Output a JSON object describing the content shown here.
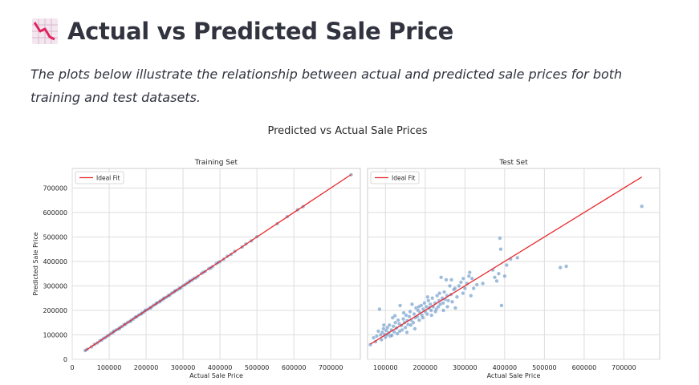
{
  "header": {
    "icon": "chart-decreasing-icon",
    "title": "Actual vs Predicted Sale Price",
    "description": "The plots below illustrate the relationship between actual and predicted sale prices for both training and test datasets."
  },
  "colors": {
    "points": "#5b8ec3",
    "fit_line": "#e8292c",
    "grid": "#dddddd",
    "text": "#31333f"
  },
  "chart_data": {
    "suptitle": "Predicted vs Actual Sale Prices",
    "charts": [
      {
        "type": "scatter",
        "title": "Training Set",
        "xlabel": "Actual Sale Price",
        "ylabel": "Predicted Sale Price",
        "xlim": [
          0,
          780000
        ],
        "ylim": [
          0,
          780000
        ],
        "xticks": [
          {
            "v": 0,
            "label": "0"
          },
          {
            "v": 100000,
            "label": "100000"
          },
          {
            "v": 200000,
            "label": "200000"
          },
          {
            "v": 300000,
            "label": "300000"
          },
          {
            "v": 400000,
            "label": "400000"
          },
          {
            "v": 500000,
            "label": "500000"
          },
          {
            "v": 600000,
            "label": "600000"
          },
          {
            "v": 700000,
            "label": "700000"
          }
        ],
        "yticks": [
          {
            "v": 0,
            "label": "0"
          },
          {
            "v": 100000,
            "label": "100000"
          },
          {
            "v": 200000,
            "label": "200000"
          },
          {
            "v": 300000,
            "label": "300000"
          },
          {
            "v": 400000,
            "label": "400000"
          },
          {
            "v": 500000,
            "label": "500000"
          },
          {
            "v": 600000,
            "label": "600000"
          },
          {
            "v": 700000,
            "label": "700000"
          }
        ],
        "grid": true,
        "legend": {
          "placement": "top-left",
          "entries": [
            "Ideal Fit"
          ]
        },
        "ideal_fit": [
          [
            34900,
            34900
          ],
          [
            755000,
            755000
          ]
        ],
        "points": [
          [
            34900,
            36000
          ],
          [
            40000,
            41000
          ],
          [
            52000,
            51000
          ],
          [
            60000,
            61000
          ],
          [
            68000,
            67000
          ],
          [
            75000,
            76000
          ],
          [
            80000,
            79000
          ],
          [
            85000,
            86000
          ],
          [
            90000,
            89000
          ],
          [
            95000,
            96000
          ],
          [
            100000,
            99000
          ],
          [
            105000,
            106000
          ],
          [
            110000,
            109000
          ],
          [
            115000,
            116000
          ],
          [
            120000,
            121000
          ],
          [
            125000,
            124000
          ],
          [
            130000,
            131000
          ],
          [
            135000,
            134000
          ],
          [
            140000,
            141000
          ],
          [
            145000,
            144000
          ],
          [
            150000,
            151000
          ],
          [
            155000,
            154000
          ],
          [
            160000,
            161000
          ],
          [
            165000,
            164000
          ],
          [
            170000,
            171000
          ],
          [
            175000,
            174000
          ],
          [
            180000,
            181000
          ],
          [
            185000,
            184000
          ],
          [
            190000,
            191000
          ],
          [
            195000,
            194000
          ],
          [
            200000,
            201000
          ],
          [
            205000,
            204000
          ],
          [
            210000,
            211000
          ],
          [
            215000,
            214000
          ],
          [
            220000,
            221000
          ],
          [
            225000,
            224000
          ],
          [
            230000,
            231000
          ],
          [
            235000,
            234000
          ],
          [
            240000,
            241000
          ],
          [
            245000,
            244000
          ],
          [
            250000,
            251000
          ],
          [
            255000,
            254000
          ],
          [
            260000,
            261000
          ],
          [
            265000,
            264000
          ],
          [
            270000,
            271000
          ],
          [
            275000,
            274000
          ],
          [
            280000,
            281000
          ],
          [
            285000,
            284000
          ],
          [
            290000,
            291000
          ],
          [
            295000,
            294000
          ],
          [
            300000,
            301000
          ],
          [
            305000,
            304000
          ],
          [
            310000,
            311000
          ],
          [
            315000,
            314000
          ],
          [
            320000,
            321000
          ],
          [
            325000,
            324000
          ],
          [
            330000,
            331000
          ],
          [
            340000,
            339000
          ],
          [
            350000,
            351000
          ],
          [
            360000,
            359000
          ],
          [
            370000,
            371000
          ],
          [
            380000,
            379000
          ],
          [
            390000,
            391000
          ],
          [
            400000,
            399000
          ],
          [
            420000,
            421000
          ],
          [
            430000,
            429000
          ],
          [
            440000,
            441000
          ],
          [
            460000,
            459000
          ],
          [
            470000,
            471000
          ],
          [
            485000,
            484000
          ],
          [
            500000,
            501000
          ],
          [
            555000,
            554000
          ],
          [
            582000,
            583000
          ],
          [
            610000,
            611000
          ],
          [
            625000,
            624000
          ],
          [
            755000,
            754000
          ],
          [
            112000,
            114000
          ],
          [
            128000,
            126000
          ],
          [
            142000,
            143000
          ],
          [
            158000,
            156000
          ],
          [
            172000,
            173000
          ],
          [
            188000,
            187000
          ],
          [
            198000,
            200000
          ],
          [
            212000,
            210000
          ],
          [
            228000,
            229000
          ],
          [
            238000,
            237000
          ],
          [
            248000,
            249000
          ],
          [
            262000,
            260000
          ],
          [
            278000,
            279000
          ],
          [
            292000,
            290000
          ],
          [
            318000,
            319000
          ],
          [
            335000,
            333000
          ],
          [
            355000,
            356000
          ],
          [
            375000,
            373000
          ],
          [
            395000,
            396000
          ],
          [
            410000,
            409000
          ]
        ]
      },
      {
        "type": "scatter",
        "title": "Test Set",
        "xlabel": "Actual Sale Price",
        "ylabel": "",
        "xlim": [
          55000,
          790000
        ],
        "ylim": [
          0,
          780000
        ],
        "xticks": [
          {
            "v": 100000,
            "label": "100000"
          },
          {
            "v": 200000,
            "label": "200000"
          },
          {
            "v": 300000,
            "label": "300000"
          },
          {
            "v": 400000,
            "label": "400000"
          },
          {
            "v": 500000,
            "label": "500000"
          },
          {
            "v": 600000,
            "label": "600000"
          },
          {
            "v": 700000,
            "label": "700000"
          }
        ],
        "grid": true,
        "legend": {
          "placement": "top-left",
          "entries": [
            "Ideal Fit"
          ]
        },
        "ideal_fit": [
          [
            62000,
            62000
          ],
          [
            745000,
            745000
          ]
        ],
        "points": [
          [
            62000,
            60000
          ],
          [
            70000,
            88000
          ],
          [
            75000,
            72000
          ],
          [
            78000,
            95000
          ],
          [
            82000,
            115000
          ],
          [
            85000,
            205000
          ],
          [
            88000,
            100000
          ],
          [
            90000,
            80000
          ],
          [
            92000,
            110000
          ],
          [
            95000,
            125000
          ],
          [
            98000,
            102000
          ],
          [
            100000,
            90000
          ],
          [
            102000,
            118000
          ],
          [
            105000,
            130000
          ],
          [
            108000,
            108000
          ],
          [
            110000,
            140000
          ],
          [
            112000,
            95000
          ],
          [
            115000,
            120000
          ],
          [
            118000,
            170000
          ],
          [
            120000,
            135000
          ],
          [
            122000,
            112000
          ],
          [
            125000,
            150000
          ],
          [
            128000,
            128000
          ],
          [
            130000,
            105000
          ],
          [
            132000,
            160000
          ],
          [
            135000,
            145000
          ],
          [
            137000,
            220000
          ],
          [
            140000,
            138000
          ],
          [
            142000,
            120000
          ],
          [
            145000,
            165000
          ],
          [
            148000,
            150000
          ],
          [
            150000,
            130000
          ],
          [
            152000,
            180000
          ],
          [
            155000,
            158000
          ],
          [
            157000,
            142000
          ],
          [
            160000,
            175000
          ],
          [
            162000,
            195000
          ],
          [
            165000,
            160000
          ],
          [
            167000,
            225000
          ],
          [
            170000,
            150000
          ],
          [
            172000,
            185000
          ],
          [
            175000,
            170000
          ],
          [
            177000,
            210000
          ],
          [
            180000,
            175000
          ],
          [
            182000,
            200000
          ],
          [
            185000,
            160000
          ],
          [
            187000,
            190000
          ],
          [
            190000,
            220000
          ],
          [
            192000,
            180000
          ],
          [
            195000,
            205000
          ],
          [
            198000,
            230000
          ],
          [
            200000,
            195000
          ],
          [
            203000,
            215000
          ],
          [
            205000,
            185000
          ],
          [
            208000,
            240000
          ],
          [
            210000,
            210000
          ],
          [
            213000,
            225000
          ],
          [
            215000,
            200000
          ],
          [
            218000,
            250000
          ],
          [
            220000,
            215000
          ],
          [
            225000,
            230000
          ],
          [
            228000,
            205000
          ],
          [
            230000,
            260000
          ],
          [
            233000,
            215000
          ],
          [
            235000,
            240000
          ],
          [
            238000,
            225000
          ],
          [
            240000,
            335000
          ],
          [
            243000,
            250000
          ],
          [
            245000,
            230000
          ],
          [
            248000,
            275000
          ],
          [
            250000,
            245000
          ],
          [
            253000,
            325000
          ],
          [
            255000,
            260000
          ],
          [
            258000,
            240000
          ],
          [
            262000,
            300000
          ],
          [
            265000,
            265000
          ],
          [
            268000,
            235000
          ],
          [
            272000,
            285000
          ],
          [
            275000,
            290000
          ],
          [
            280000,
            255000
          ],
          [
            285000,
            300000
          ],
          [
            290000,
            315000
          ],
          [
            295000,
            270000
          ],
          [
            300000,
            290000
          ],
          [
            305000,
            310000
          ],
          [
            310000,
            340000
          ],
          [
            312000,
            355000
          ],
          [
            315000,
            260000
          ],
          [
            318000,
            330000
          ],
          [
            322000,
            290000
          ],
          [
            330000,
            305000
          ],
          [
            345000,
            310000
          ],
          [
            370000,
            365000
          ],
          [
            375000,
            335000
          ],
          [
            380000,
            320000
          ],
          [
            385000,
            350000
          ],
          [
            388000,
            495000
          ],
          [
            390000,
            450000
          ],
          [
            392000,
            220000
          ],
          [
            400000,
            340000
          ],
          [
            405000,
            385000
          ],
          [
            415000,
            410000
          ],
          [
            432000,
            415000
          ],
          [
            540000,
            375000
          ],
          [
            555000,
            380000
          ],
          [
            745000,
            625000
          ],
          [
            96000,
            140000
          ],
          [
            104000,
            100000
          ],
          [
            116000,
            98000
          ],
          [
            124000,
            178000
          ],
          [
            136000,
            115000
          ],
          [
            146000,
            190000
          ],
          [
            154000,
            110000
          ],
          [
            164000,
            140000
          ],
          [
            174000,
            125000
          ],
          [
            184000,
            215000
          ],
          [
            194000,
            170000
          ],
          [
            206000,
            255000
          ],
          [
            216000,
            180000
          ],
          [
            226000,
            195000
          ],
          [
            236000,
            270000
          ],
          [
            246000,
            200000
          ],
          [
            256000,
            215000
          ],
          [
            266000,
            325000
          ],
          [
            276000,
            210000
          ],
          [
            296000,
            330000
          ]
        ]
      }
    ]
  }
}
